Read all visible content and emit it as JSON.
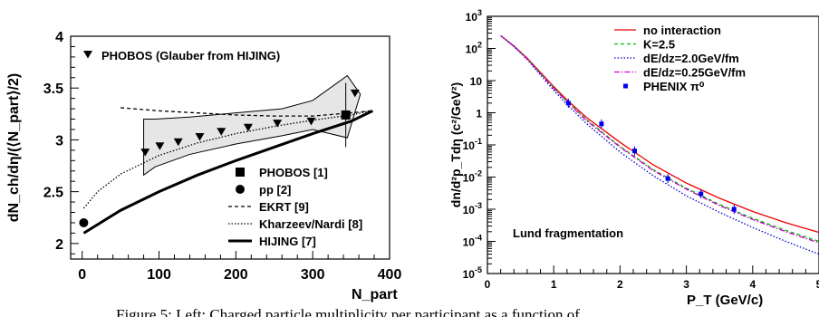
{
  "chart_data": [
    {
      "type": "line",
      "ylabel": "dN_ch/dη/(⟨N_part⟩/2)",
      "xlabel": "N_part",
      "xlim": [
        -15,
        400
      ],
      "ylim": [
        1.85,
        4.0
      ],
      "x_ticks": [
        "0",
        "100",
        "200",
        "300",
        "400"
      ],
      "y_ticks": [
        "2",
        "2.5",
        "3",
        "3.5",
        "4"
      ],
      "annotation": "PHOBOS (Glauber from HIJING)",
      "band": {
        "upper": [
          [
            80,
            3.2
          ],
          [
            95,
            3.2
          ],
          [
            140,
            3.22
          ],
          [
            200,
            3.26
          ],
          [
            260,
            3.3
          ],
          [
            300,
            3.38
          ],
          [
            345,
            3.62
          ],
          [
            362,
            3.44
          ]
        ],
        "lower": [
          [
            80,
            2.66
          ],
          [
            95,
            2.74
          ],
          [
            140,
            2.86
          ],
          [
            200,
            2.96
          ],
          [
            260,
            3.04
          ],
          [
            300,
            3.1
          ],
          [
            345,
            3.02
          ],
          [
            362,
            3.44
          ]
        ]
      },
      "series": [
        {
          "name": "PHOBOS (Glauber from HIJING)",
          "style": "triangle-down",
          "x": [
            82,
            101,
            125,
            153,
            181,
            216,
            254,
            298,
            355
          ],
          "y": [
            2.88,
            2.94,
            2.98,
            3.03,
            3.08,
            3.12,
            3.16,
            3.18,
            3.45
          ]
        },
        {
          "name": "PHOBOS [1]",
          "style": "square",
          "x": [
            343
          ],
          "y": [
            3.24
          ],
          "yerr": [
            0.31
          ]
        },
        {
          "name": "pp [2]",
          "style": "circle",
          "x": [
            2
          ],
          "y": [
            2.2
          ]
        },
        {
          "name": "EKRT [9]",
          "style": "dashed",
          "x": [
            50,
            100,
            150,
            200,
            250,
            300,
            350,
            375
          ],
          "y": [
            3.31,
            3.28,
            3.26,
            3.24,
            3.23,
            3.23,
            3.26,
            3.28
          ]
        },
        {
          "name": "Kharzeev/Nardi [8]",
          "style": "dotted",
          "x": [
            2,
            20,
            50,
            100,
            150,
            200,
            250,
            300,
            350,
            375
          ],
          "y": [
            2.34,
            2.5,
            2.67,
            2.85,
            2.97,
            3.06,
            3.13,
            3.19,
            3.24,
            3.28
          ]
        },
        {
          "name": "HIJING [7]",
          "style": "thick",
          "x": [
            2,
            50,
            100,
            150,
            200,
            250,
            300,
            350,
            378
          ],
          "y": [
            2.1,
            2.32,
            2.5,
            2.66,
            2.8,
            2.93,
            3.06,
            3.18,
            3.28
          ]
        }
      ],
      "legend": [
        {
          "label": "PHOBOS [1]",
          "style": "square"
        },
        {
          "label": "pp [2]",
          "style": "circle"
        },
        {
          "label": "EKRT [9]",
          "style": "dashed"
        },
        {
          "label": "Kharzeev/Nardi [8]",
          "style": "dotted"
        },
        {
          "label": "HIJING [7]",
          "style": "thick"
        }
      ]
    },
    {
      "type": "line",
      "ylabel": "dn/d²p_Tdη (c²/GeV²)",
      "xlabel": "P_T (GeV/c)",
      "yscale": "log",
      "xlim": [
        0,
        5
      ],
      "ylim_exp": [
        -5,
        3
      ],
      "x_ticks": [
        "0",
        "1",
        "2",
        "3",
        "4",
        "5"
      ],
      "annotation": "Lund fragmentation",
      "series": [
        {
          "name": "no interaction",
          "style": "solid",
          "color": "#ee0000",
          "x": [
            0.2,
            0.4,
            0.6,
            0.8,
            1.0,
            1.2,
            1.5,
            2.0,
            2.5,
            3.0,
            3.5,
            4.0,
            4.5,
            5.0
          ],
          "y": [
            250,
            120,
            50,
            18,
            6.5,
            2.5,
            0.7,
            0.12,
            0.024,
            0.0065,
            0.0022,
            0.00085,
            0.00038,
            0.00019
          ]
        },
        {
          "name": "K=2.5",
          "style": "dashed",
          "color": "#00bb00",
          "x": [
            0.2,
            0.4,
            0.6,
            0.8,
            1.0,
            1.2,
            1.5,
            2.0,
            2.5,
            3.0,
            3.5,
            4.0,
            4.5,
            5.0
          ],
          "y": [
            250,
            118,
            48,
            17,
            6.0,
            2.3,
            0.6,
            0.09,
            0.017,
            0.0045,
            0.0014,
            0.00052,
            0.00022,
            0.0001
          ]
        },
        {
          "name": "dE/dz=2.0GeV/fm",
          "style": "dotted",
          "color": "#0000cc",
          "x": [
            0.2,
            0.4,
            0.6,
            0.8,
            1.0,
            1.2,
            1.5,
            2.0,
            2.5,
            3.0,
            3.5,
            4.0,
            4.5,
            5.0
          ],
          "y": [
            250,
            115,
            45,
            15,
            5.0,
            1.8,
            0.45,
            0.06,
            0.011,
            0.0026,
            0.0008,
            0.00027,
            0.0001,
            4e-05
          ]
        },
        {
          "name": "dE/dz=0.25GeV/fm",
          "style": "dashdot",
          "color": "#cc00cc",
          "x": [
            0.2,
            0.4,
            0.6,
            0.8,
            1.0,
            1.2,
            1.5,
            2.0,
            2.5,
            3.0,
            3.5,
            4.0,
            4.5,
            5.0
          ],
          "y": [
            250,
            117,
            47,
            16.5,
            5.7,
            2.2,
            0.56,
            0.085,
            0.016,
            0.0042,
            0.0013,
            0.00048,
            0.0002,
            9e-05
          ]
        },
        {
          "name": "PHENIX π⁰",
          "style": "marker",
          "color": "#0000ee",
          "x": [
            1.22,
            1.72,
            2.22,
            2.72,
            3.22,
            3.72
          ],
          "y": [
            2.0,
            0.45,
            0.065,
            0.009,
            0.003,
            0.001
          ]
        }
      ]
    }
  ],
  "caption_text": "Figure 5: Left: Charged particle multiplicity per participant as a function of"
}
